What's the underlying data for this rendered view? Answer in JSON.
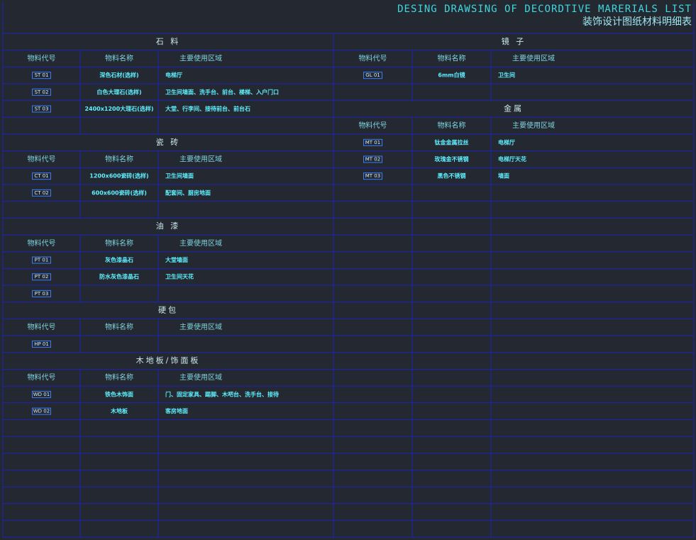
{
  "header": {
    "title": "DESING DRAWSING OF DECORDTIVE MARERIALS LIST",
    "subtitle": "装饰设计图纸材料明细表"
  },
  "left_sections": [
    {
      "title": "石 料",
      "headers": [
        "物料代号",
        "物料名称",
        "主要使用区域"
      ],
      "rows": [
        {
          "code": "ST 01",
          "name": "深色石材(选样)",
          "area": "电梯厅"
        },
        {
          "code": "ST 02",
          "name": "白色大理石(选样)",
          "area": "卫生间墙面、洗手台、前台、楼梯、入户门口"
        },
        {
          "code": "ST 03",
          "name": "2400x1200大理石(选样)",
          "area": "大堂、行李间、接待前台、前台石"
        }
      ]
    },
    {
      "title": "瓷 砖",
      "headers": [
        "物料代号",
        "物料名称",
        "主要使用区域"
      ],
      "rows": [
        {
          "code": "CT 01",
          "name": "1200x600瓷砖(选样)",
          "area": "卫生间墙面"
        },
        {
          "code": "CT 02",
          "name": "600x600瓷砖(选样)",
          "area": "配套间、厨房地面"
        }
      ]
    },
    {
      "title": "油 漆",
      "headers": [
        "物料代号",
        "物料名称",
        "主要使用区域"
      ],
      "rows": [
        {
          "code": "PT 01",
          "name": "灰色漆晶石",
          "area": "大堂墙面"
        },
        {
          "code": "PT 02",
          "name": "防水灰色漆晶石",
          "area": "卫生间天花"
        },
        {
          "code": "PT 03"
        }
      ]
    },
    {
      "title": "硬包",
      "headers": [
        "物料代号",
        "物料名称",
        "主要使用区域"
      ],
      "rows": [
        {
          "code": "HP 01"
        }
      ]
    },
    {
      "title": "木地板/饰面板",
      "headers": [
        "物料代号",
        "物料名称",
        "主要使用区域"
      ],
      "rows": [
        {
          "code": "WD 01",
          "name": "铁色木饰面",
          "area": "门、固定家具、踢脚、木吧台、洗手台、接待"
        },
        {
          "code": "WD 02",
          "name": "木地板",
          "area": "客房地面"
        }
      ]
    }
  ],
  "right_sections": [
    {
      "title": "镜 子",
      "headers": [
        "物料代号",
        "物料名称",
        "主要使用区域"
      ],
      "rows": [
        {
          "code": "GL 01",
          "name": "6mm白镜",
          "area": "卫生间"
        }
      ]
    },
    {
      "title": "金属",
      "headers": [
        "物料代号",
        "物料名称",
        "主要使用区域"
      ],
      "rows": [
        {
          "code": "MT 01",
          "name": "钛金金属拉丝",
          "area": "电梯厅"
        },
        {
          "code": "MT 02",
          "name": "玫瑰金不锈钢",
          "area": "电梯厅天花"
        },
        {
          "code": "MT 03",
          "name": "黑色不锈钢",
          "area": "墙面"
        }
      ]
    }
  ]
}
